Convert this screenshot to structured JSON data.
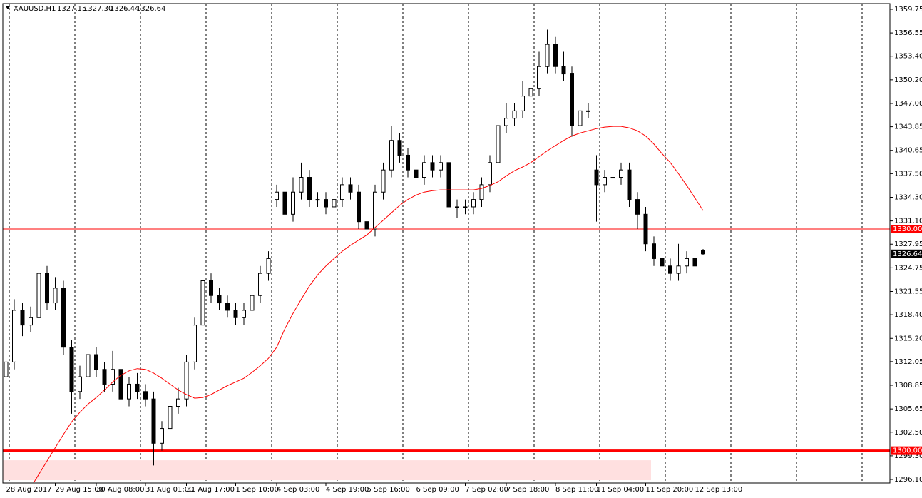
{
  "chart_data": {
    "type": "candlestick",
    "title": "XAUUSD,H1",
    "header_ohlc": [
      "1327.15",
      "1327.30",
      "1326.44",
      "1326.64"
    ],
    "categories": [
      "28 Aug 2017",
      null,
      null,
      null,
      null,
      null,
      "29 Aug 15:00",
      null,
      null,
      null,
      null,
      "30 Aug 08:00",
      null,
      null,
      null,
      null,
      null,
      "31 Aug 01:00",
      null,
      null,
      null,
      null,
      "31 Aug 17:00",
      null,
      null,
      null,
      null,
      null,
      "1 Sep 10:00",
      null,
      null,
      null,
      null,
      "4 Sep 03:00",
      null,
      null,
      null,
      null,
      null,
      "4 Sep 19:00",
      null,
      null,
      null,
      null,
      "5 Sep 16:00",
      null,
      null,
      null,
      null,
      null,
      "6 Sep 09:00",
      null,
      null,
      null,
      null,
      null,
      "7 Sep 02:00",
      null,
      null,
      null,
      null,
      "7 Sep 18:00",
      null,
      null,
      null,
      null,
      null,
      "8 Sep 11:00",
      null,
      null,
      null,
      null,
      "11 Sep 04:00",
      null,
      null,
      null,
      null,
      null,
      "11 Sep 20:00",
      null,
      null,
      null,
      null,
      null,
      "12 Sep 13:00",
      null
    ],
    "open": [
      1310,
      1312,
      1319,
      1317,
      1318,
      1324,
      1320,
      1322,
      1314,
      1308,
      1310,
      1313,
      1311,
      1309,
      1311,
      1307,
      1309,
      1308,
      1307,
      1301,
      1303,
      1306,
      1307,
      1312,
      1317,
      1323,
      1321,
      1320,
      1319,
      1318,
      1319,
      1321,
      1324,
      1334,
      1335,
      1332,
      1335,
      1337,
      1334,
      1334,
      1333,
      1334,
      1336,
      1335,
      1331,
      1330,
      1335,
      1338,
      1342,
      1340,
      1338,
      1337,
      1339,
      1338,
      1339,
      1333,
      1333,
      1333,
      1334,
      1336,
      1339,
      1344,
      1345,
      1346,
      1348,
      1349,
      1352,
      1355,
      1352,
      1351,
      1344,
      1346,
      1338,
      1336,
      1337,
      1337,
      1338,
      1334,
      1332,
      1328,
      1326,
      1325,
      1324,
      1325,
      1326,
      1327.15
    ],
    "high": [
      1313.5,
      1320.5,
      1320,
      1319.5,
      1326,
      1325,
      1323.5,
      1323,
      1315,
      1311.5,
      1314,
      1314,
      1312,
      1313.5,
      1312,
      1310,
      1310.5,
      1309,
      1308,
      1304,
      1307,
      1308.5,
      1313,
      1318,
      1324,
      1324,
      1322,
      1321,
      1320,
      1320,
      1329,
      1325,
      1327,
      1336,
      1336,
      1337,
      1339,
      1338,
      1335,
      1335,
      1337,
      1337,
      1337,
      1336,
      1332,
      1336,
      1339,
      1344,
      1343,
      1341,
      1339,
      1340,
      1340,
      1340,
      1340,
      1334,
      1334,
      1335,
      1337,
      1340,
      1347,
      1347,
      1347,
      1350,
      1350,
      1354,
      1357,
      1356,
      1354,
      1352,
      1347,
      1347,
      1340,
      1338,
      1338,
      1339,
      1339,
      1335,
      1333,
      1329,
      1327,
      1326,
      1328,
      1327,
      1329,
      1327.3
    ],
    "low": [
      1309,
      1311,
      1315.5,
      1316,
      1317,
      1319,
      1319,
      1313,
      1305,
      1307,
      1309,
      1310,
      1308,
      1308,
      1305.5,
      1306,
      1307,
      1306,
      1298,
      1300,
      1302,
      1305,
      1306,
      1311,
      1316,
      1320,
      1319,
      1318,
      1317,
      1317,
      1318,
      1320,
      1323,
      1333,
      1331,
      1331,
      1334,
      1333,
      1333,
      1332,
      1332,
      1333,
      1334,
      1330,
      1326,
      1329,
      1334,
      1337,
      1339,
      1337,
      1336,
      1336,
      1337,
      1337,
      1332,
      1331.5,
      1332,
      1332,
      1333,
      1335,
      1338,
      1343,
      1344,
      1345,
      1347,
      1348,
      1351,
      1351,
      1350,
      1342.5,
      1343,
      1345,
      1331,
      1335,
      1336,
      1336,
      1333,
      1330,
      1327,
      1325,
      1324,
      1323,
      1323,
      1324,
      1322.5,
      1326.44
    ],
    "close": [
      1312,
      1319,
      1317,
      1318,
      1324,
      1320,
      1322,
      1314,
      1308,
      1310,
      1313,
      1311,
      1309,
      1311,
      1307,
      1309,
      1308,
      1307,
      1301,
      1303,
      1306,
      1307,
      1312,
      1317,
      1323,
      1321,
      1320,
      1319,
      1318,
      1319,
      1321,
      1324,
      1326,
      1335,
      1332,
      1335,
      1337,
      1334,
      1334,
      1333,
      1334,
      1336,
      1335,
      1331,
      1330,
      1335,
      1338,
      1342,
      1340,
      1338,
      1337,
      1339,
      1338,
      1339,
      1333,
      1333,
      1333,
      1334,
      1336,
      1339,
      1344,
      1345,
      1346,
      1348,
      1349,
      1352,
      1355,
      1352,
      1351,
      1344,
      1346,
      1346,
      1336,
      1337,
      1337,
      1338,
      1334,
      1332,
      1328,
      1326,
      1325,
      1324,
      1325,
      1326,
      1325,
      1326.64
    ],
    "ma": {
      "color": "#ff0000",
      "values": [
        null,
        null,
        1293.2,
        1295.0,
        1296.8,
        1298.6,
        1300.4,
        1302.2,
        1303.9,
        1305.2,
        1306.3,
        1307.2,
        1308.2,
        1309.3,
        1310.2,
        1310.8,
        1311.1,
        1311.0,
        1310.5,
        1309.8,
        1309.0,
        1308.2,
        1307.6,
        1307.1,
        1307.2,
        1307.6,
        1308.2,
        1308.8,
        1309.3,
        1309.8,
        1310.6,
        1311.5,
        1312.5,
        1314.0,
        1316.5,
        1318.6,
        1320.5,
        1322.3,
        1323.8,
        1325.0,
        1326.0,
        1327.0,
        1327.8,
        1328.5,
        1329.2,
        1330.2,
        1331.2,
        1332.2,
        1333.2,
        1334.0,
        1334.6,
        1335.0,
        1335.2,
        1335.3,
        1335.3,
        1335.3,
        1335.3,
        1335.3,
        1335.5,
        1335.9,
        1336.4,
        1337.2,
        1337.9,
        1338.4,
        1339.0,
        1339.8,
        1340.6,
        1341.3,
        1342.0,
        1342.6,
        1343.0,
        1343.3,
        1343.6,
        1343.8,
        1343.9,
        1343.9,
        1343.7,
        1343.3,
        1342.6,
        1341.5,
        1340.2,
        1339.0,
        1337.5,
        1335.9,
        1334.2,
        1332.5
      ]
    },
    "ylim": [
      1295.62,
      1360.52
    ],
    "yticks": [
      1359.75,
      1356.55,
      {
        "value": 1353.4,
        "label": "1353.40"
      },
      {
        "value": 1350.2,
        "label": "1350.20"
      },
      {
        "value": 1347,
        "label": "1347.00"
      },
      1343.85,
      1340.65,
      {
        "value": 1337.5,
        "label": "1337.50"
      },
      {
        "value": 1334.3,
        "label": "1334.30"
      },
      {
        "value": 1331.1,
        "label": "1331.10"
      },
      1327.95,
      1324.75,
      1321.55,
      {
        "value": 1318.4,
        "label": "1318.40"
      },
      {
        "value": 1315.2,
        "label": "1315.20"
      },
      1312.05,
      1308.85,
      1305.65,
      {
        "value": 1302.5,
        "label": "1302.50"
      },
      {
        "value": 1299.3,
        "label": "1299.30"
      },
      {
        "value": 1296.1,
        "label": "1296.10"
      }
    ],
    "levels": [
      {
        "value": 1330,
        "label": "1330.00",
        "color": "#ff0000",
        "width": 1
      },
      {
        "value": 1300,
        "label": "1300.00",
        "color": "#ff0000",
        "width": 3
      }
    ],
    "zone": {
      "low": 1296.0,
      "high": 1298.7,
      "color": "#ffe0e0"
    },
    "bull_color": "#ffffff",
    "bear_color": "#000000"
  }
}
